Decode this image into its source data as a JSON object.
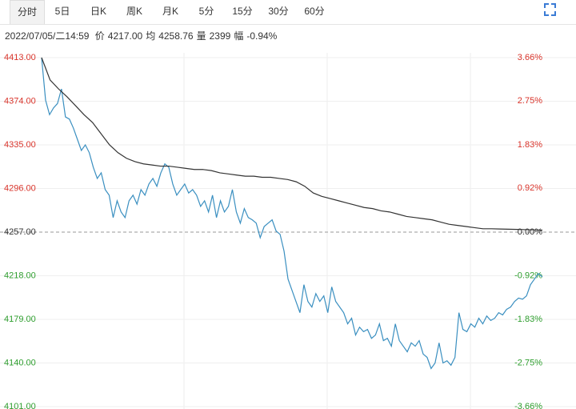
{
  "tabs": [
    "分时",
    "5日",
    "日K",
    "周K",
    "月K",
    "5分",
    "15分",
    "30分",
    "60分"
  ],
  "info": {
    "datetime": "2022/07/05/二14:59",
    "items": [
      {
        "label": "价",
        "value": "4217.00"
      },
      {
        "label": "均",
        "value": "4258.76"
      },
      {
        "label": "量",
        "value": "2399"
      },
      {
        "label": "幅",
        "value": "-0.94%"
      }
    ]
  },
  "chart_data": {
    "type": "line",
    "ylim": [
      4101,
      4413
    ],
    "yticks": [
      {
        "value": 4413,
        "label": "4413.00"
      },
      {
        "value": 4374,
        "label": "4374.00"
      },
      {
        "value": 4335,
        "label": "4335.00"
      },
      {
        "value": 4296,
        "label": "4296.00"
      },
      {
        "value": 4257,
        "label": "4257.00"
      },
      {
        "value": 4218,
        "label": "4218.00"
      },
      {
        "value": 4179,
        "label": "4179.00"
      },
      {
        "value": 4140,
        "label": "4140.00"
      },
      {
        "value": 4101,
        "label": "4101.00"
      }
    ],
    "y2lim": [
      -3.66,
      3.66
    ],
    "y2ticks": [
      {
        "value": 3.66,
        "label": "3.66%"
      },
      {
        "value": 2.75,
        "label": "2.75%"
      },
      {
        "value": 1.83,
        "label": "1.83%"
      },
      {
        "value": 0.92,
        "label": "0.92%"
      },
      {
        "value": 0,
        "label": "0.00%"
      },
      {
        "value": -0.92,
        "label": "-0.92%"
      },
      {
        "value": -1.83,
        "label": "-1.83%"
      },
      {
        "value": -2.75,
        "label": "-2.75%"
      },
      {
        "value": -3.66,
        "label": "-3.66%"
      }
    ],
    "up_color": "#d9342b",
    "down_color": "#2e9e2e",
    "flat_color": "#333333",
    "grid": true,
    "series": [
      {
        "color": "#3a8fc0",
        "values": [
          4413,
          4375,
          4362,
          4368,
          4372,
          4385,
          4360,
          4358,
          4350,
          4340,
          4330,
          4335,
          4328,
          4315,
          4305,
          4310,
          4295,
          4290,
          4270,
          4285,
          4275,
          4270,
          4285,
          4290,
          4282,
          4295,
          4290,
          4300,
          4305,
          4298,
          4310,
          4318,
          4315,
          4300,
          4290,
          4295,
          4300,
          4292,
          4295,
          4290,
          4280,
          4285,
          4275,
          4290,
          4270,
          4285,
          4275,
          4280,
          4295,
          4275,
          4265,
          4278,
          4270,
          4268,
          4265,
          4252,
          4262,
          4265,
          4268,
          4258,
          4255,
          4240,
          4215,
          4205,
          4195,
          4185,
          4210,
          4195,
          4190,
          4202,
          4195,
          4200,
          4185,
          4208,
          4195,
          4190,
          4185,
          4175,
          4180,
          4165,
          4172,
          4168,
          4170,
          4162,
          4165,
          4175,
          4160,
          4162,
          4155,
          4175,
          4160,
          4155,
          4150,
          4158,
          4155,
          4160,
          4148,
          4145,
          4135,
          4140,
          4158,
          4140,
          4142,
          4138,
          4145,
          4185,
          4170,
          4168,
          4175,
          4172,
          4180,
          4175,
          4182,
          4178,
          4180,
          4185,
          4183,
          4188,
          4190,
          4195,
          4198,
          4197,
          4200,
          4210,
          4215,
          4220,
          4217
        ]
      },
      {
        "color": "#333333",
        "values": [
          4413,
          4393,
          4385,
          4378,
          4370,
          4362,
          4355,
          4345,
          4335,
          4328,
          4323,
          4320,
          4318,
          4317,
          4316,
          4316,
          4315,
          4314,
          4313,
          4313,
          4312,
          4310,
          4309,
          4308,
          4307,
          4307,
          4306,
          4306,
          4305,
          4304,
          4302,
          4298,
          4292,
          4289,
          4287,
          4285,
          4283,
          4281,
          4279,
          4278,
          4276,
          4275,
          4273,
          4271,
          4270,
          4269,
          4268,
          4266,
          4264,
          4263,
          4262,
          4261,
          4260,
          4260,
          4259.8,
          4259.6,
          4259.4,
          4259.2,
          4259,
          4258.8
        ]
      }
    ]
  }
}
